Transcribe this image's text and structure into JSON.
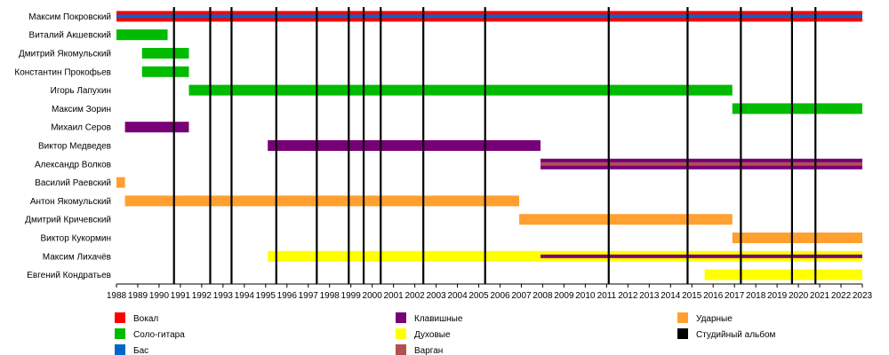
{
  "chart_data": {
    "type": "timeline",
    "x_range": [
      1988,
      2023
    ],
    "x_ticks": [
      "1988",
      "1989",
      "1990",
      "1991",
      "1992",
      "1993",
      "1994",
      "1995",
      "1996",
      "1997",
      "1998",
      "1999",
      "2000",
      "2001",
      "2002",
      "2003",
      "2004",
      "2005",
      "2006",
      "2007",
      "2008",
      "2009",
      "2010",
      "2011",
      "2012",
      "2013",
      "2014",
      "2015",
      "2016",
      "2017",
      "2018",
      "2019",
      "2020",
      "2021",
      "2022",
      "2023"
    ],
    "role_colors": {
      "vocal": "#ff0000",
      "guitar": "#00bb00",
      "bass": "#0066cc",
      "keys": "#770077",
      "winds": "#ffff00",
      "vargan": "#b05050",
      "drums": "#ffa030",
      "album": "#000000"
    },
    "members": [
      {
        "name": "Максим Покровский",
        "stints": [
          {
            "role": "vocal",
            "start": 1988.0,
            "end": 2023.0
          },
          {
            "role": "bass",
            "start": 1988.0,
            "end": 2023.0,
            "overlay": "stripe"
          }
        ]
      },
      {
        "name": "Виталий Акшевский",
        "stints": [
          {
            "role": "guitar",
            "start": 1988.0,
            "end": 1990.4
          }
        ]
      },
      {
        "name": "Дмитрий Якомульский",
        "stints": [
          {
            "role": "guitar",
            "start": 1989.2,
            "end": 1991.4
          }
        ]
      },
      {
        "name": "Константин Прокофьев",
        "stints": [
          {
            "role": "guitar",
            "start": 1989.2,
            "end": 1991.4
          }
        ]
      },
      {
        "name": "Игорь Лапухин",
        "stints": [
          {
            "role": "guitar",
            "start": 1991.4,
            "end": 2016.9
          }
        ]
      },
      {
        "name": "Максим Зорин",
        "stints": [
          {
            "role": "guitar",
            "start": 2016.9,
            "end": 2023.0
          }
        ]
      },
      {
        "name": "Михаил Серов",
        "stints": [
          {
            "role": "keys",
            "start": 1988.4,
            "end": 1991.4
          }
        ]
      },
      {
        "name": "Виктор Медведев",
        "stints": [
          {
            "role": "keys",
            "start": 1995.1,
            "end": 2007.9
          }
        ]
      },
      {
        "name": "Александр Волков",
        "stints": [
          {
            "role": "keys",
            "start": 2007.9,
            "end": 2023.0
          },
          {
            "role": "vargan",
            "start": 2007.9,
            "end": 2023.0,
            "overlay": "stripe"
          }
        ]
      },
      {
        "name": "Василий Раевский",
        "stints": [
          {
            "role": "drums",
            "start": 1988.0,
            "end": 1988.4
          }
        ]
      },
      {
        "name": "Антон Якомульский",
        "stints": [
          {
            "role": "drums",
            "start": 1988.4,
            "end": 2006.9
          }
        ]
      },
      {
        "name": "Дмитрий Кричевский",
        "stints": [
          {
            "role": "drums",
            "start": 2006.9,
            "end": 2016.9
          }
        ]
      },
      {
        "name": "Виктор Кукормин",
        "stints": [
          {
            "role": "drums",
            "start": 2016.9,
            "end": 2023.0
          }
        ]
      },
      {
        "name": "Максим Лихачёв",
        "stints": [
          {
            "role": "winds",
            "start": 1995.1,
            "end": 2023.0
          },
          {
            "role": "keys",
            "start": 2007.9,
            "end": 2023.0,
            "overlay": "stripe"
          }
        ]
      },
      {
        "name": "Евгений Кондратьев",
        "stints": [
          {
            "role": "winds",
            "start": 2015.6,
            "end": 2023.0
          }
        ]
      }
    ],
    "albums": [
      1990.7,
      1992.4,
      1993.4,
      1995.5,
      1997.4,
      1998.9,
      1999.6,
      2000.4,
      2002.4,
      2005.3,
      2011.1,
      2014.8,
      2017.3,
      2019.7,
      2020.8
    ],
    "legend": [
      {
        "role": "vocal",
        "label": "Вокал"
      },
      {
        "role": "guitar",
        "label": "Соло-гитара"
      },
      {
        "role": "bass",
        "label": "Бас"
      },
      {
        "role": "keys",
        "label": "Клавишные"
      },
      {
        "role": "winds",
        "label": "Духовые"
      },
      {
        "role": "vargan",
        "label": "Варган"
      },
      {
        "role": "drums",
        "label": "Ударные"
      },
      {
        "role": "album",
        "label": "Студийный альбом"
      }
    ]
  }
}
